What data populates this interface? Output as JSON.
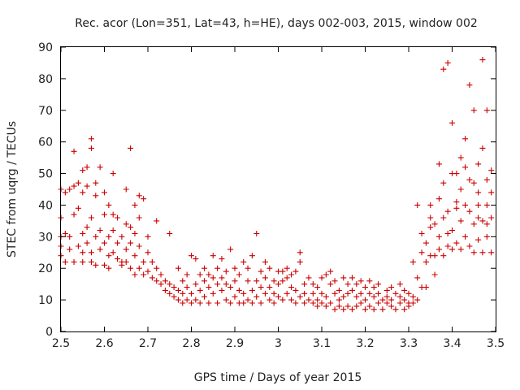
{
  "chart_data": {
    "type": "scatter",
    "title": "Rec. acor (Lon=351, Lat=43, h=HE), days 002-003, 2015, window 002",
    "xlabel": "GPS time / Days of year 2015",
    "ylabel": "STEC from uqrg / TECUs",
    "xlim": [
      2.5,
      3.5
    ],
    "ylim": [
      0,
      90
    ],
    "xticks": [
      "2.5",
      "2.6",
      "2.7",
      "2.8",
      "2.9",
      "3",
      "3.1",
      "3.2",
      "3.3",
      "3.4",
      "3.5"
    ],
    "yticks": [
      "0",
      "10",
      "20",
      "30",
      "40",
      "50",
      "60",
      "70",
      "80",
      "90"
    ],
    "grid": false,
    "legend": "none",
    "marker": "plus",
    "color": "#cc0000",
    "series": [
      {
        "name": "STEC",
        "points": [
          [
            2.5,
            45
          ],
          [
            2.5,
            36
          ],
          [
            2.51,
            44
          ],
          [
            2.52,
            45
          ],
          [
            2.53,
            57
          ],
          [
            2.53,
            46
          ],
          [
            2.54,
            47
          ],
          [
            2.55,
            44
          ],
          [
            2.55,
            51
          ],
          [
            2.56,
            52
          ],
          [
            2.56,
            46
          ],
          [
            2.57,
            61
          ],
          [
            2.57,
            58
          ],
          [
            2.58,
            47
          ],
          [
            2.59,
            52
          ],
          [
            2.6,
            44
          ],
          [
            2.61,
            40
          ],
          [
            2.62,
            50
          ],
          [
            2.63,
            36
          ],
          [
            2.65,
            45
          ],
          [
            2.66,
            58
          ],
          [
            2.67,
            40
          ],
          [
            2.68,
            43
          ],
          [
            2.69,
            42
          ],
          [
            2.72,
            35
          ],
          [
            2.5,
            30
          ],
          [
            2.5,
            24
          ],
          [
            2.5,
            27
          ],
          [
            2.51,
            22
          ],
          [
            2.51,
            31
          ],
          [
            2.52,
            26
          ],
          [
            2.52,
            30
          ],
          [
            2.53,
            37
          ],
          [
            2.53,
            22
          ],
          [
            2.54,
            39
          ],
          [
            2.54,
            27
          ],
          [
            2.55,
            25
          ],
          [
            2.55,
            31
          ],
          [
            2.55,
            22
          ],
          [
            2.56,
            33
          ],
          [
            2.56,
            28
          ],
          [
            2.57,
            22
          ],
          [
            2.57,
            36
          ],
          [
            2.57,
            25
          ],
          [
            2.58,
            30
          ],
          [
            2.58,
            43
          ],
          [
            2.58,
            21
          ],
          [
            2.59,
            26
          ],
          [
            2.59,
            32
          ],
          [
            2.6,
            37
          ],
          [
            2.6,
            21
          ],
          [
            2.6,
            28
          ],
          [
            2.61,
            30
          ],
          [
            2.61,
            24
          ],
          [
            2.61,
            20
          ],
          [
            2.62,
            32
          ],
          [
            2.62,
            37
          ],
          [
            2.62,
            25
          ],
          [
            2.63,
            23
          ],
          [
            2.63,
            28
          ],
          [
            2.64,
            30
          ],
          [
            2.64,
            22
          ],
          [
            2.64,
            21
          ],
          [
            2.65,
            34
          ],
          [
            2.65,
            26
          ],
          [
            2.65,
            22
          ],
          [
            2.66,
            33
          ],
          [
            2.66,
            20
          ],
          [
            2.66,
            28
          ],
          [
            2.67,
            31
          ],
          [
            2.67,
            24
          ],
          [
            2.67,
            18
          ],
          [
            2.68,
            36
          ],
          [
            2.68,
            20
          ],
          [
            2.68,
            27
          ],
          [
            2.69,
            22
          ],
          [
            2.69,
            18
          ],
          [
            2.7,
            30
          ],
          [
            2.7,
            19
          ],
          [
            2.7,
            25
          ],
          [
            2.71,
            17
          ],
          [
            2.71,
            22
          ],
          [
            2.72,
            16
          ],
          [
            2.72,
            20
          ],
          [
            2.73,
            15
          ],
          [
            2.73,
            18
          ],
          [
            2.74,
            13
          ],
          [
            2.74,
            16
          ],
          [
            2.75,
            31
          ],
          [
            2.75,
            15
          ],
          [
            2.75,
            12
          ],
          [
            2.76,
            14
          ],
          [
            2.76,
            11
          ],
          [
            2.77,
            20
          ],
          [
            2.77,
            13
          ],
          [
            2.77,
            10
          ],
          [
            2.78,
            16
          ],
          [
            2.78,
            12
          ],
          [
            2.78,
            9
          ],
          [
            2.79,
            14
          ],
          [
            2.79,
            10
          ],
          [
            2.79,
            18
          ],
          [
            2.8,
            24
          ],
          [
            2.8,
            12
          ],
          [
            2.8,
            9
          ],
          [
            2.81,
            15
          ],
          [
            2.81,
            23
          ],
          [
            2.81,
            10
          ],
          [
            2.82,
            13
          ],
          [
            2.82,
            18
          ],
          [
            2.82,
            9
          ],
          [
            2.83,
            16
          ],
          [
            2.83,
            11
          ],
          [
            2.83,
            20
          ],
          [
            2.84,
            14
          ],
          [
            2.84,
            9
          ],
          [
            2.84,
            18
          ],
          [
            2.85,
            17
          ],
          [
            2.85,
            12
          ],
          [
            2.85,
            24
          ],
          [
            2.86,
            15
          ],
          [
            2.86,
            9
          ],
          [
            2.86,
            20
          ],
          [
            2.87,
            13
          ],
          [
            2.87,
            17
          ],
          [
            2.87,
            23
          ],
          [
            2.88,
            15
          ],
          [
            2.88,
            10
          ],
          [
            2.88,
            19
          ],
          [
            2.89,
            26
          ],
          [
            2.89,
            14
          ],
          [
            2.89,
            9
          ],
          [
            2.9,
            20
          ],
          [
            2.9,
            11
          ],
          [
            2.9,
            16
          ],
          [
            2.91,
            13
          ],
          [
            2.91,
            9
          ],
          [
            2.91,
            18
          ],
          [
            2.92,
            12
          ],
          [
            2.92,
            22
          ],
          [
            2.92,
            9
          ],
          [
            2.93,
            16
          ],
          [
            2.93,
            10
          ],
          [
            2.93,
            20
          ],
          [
            2.94,
            13
          ],
          [
            2.94,
            24
          ],
          [
            2.94,
            9
          ],
          [
            2.95,
            31
          ],
          [
            2.95,
            16
          ],
          [
            2.95,
            11
          ],
          [
            2.96,
            19
          ],
          [
            2.96,
            9
          ],
          [
            2.96,
            14
          ],
          [
            2.97,
            22
          ],
          [
            2.97,
            12
          ],
          [
            2.97,
            17
          ],
          [
            2.98,
            20
          ],
          [
            2.98,
            10
          ],
          [
            2.98,
            14
          ],
          [
            2.99,
            12
          ],
          [
            2.99,
            16
          ],
          [
            2.99,
            9
          ],
          [
            3.0,
            19
          ],
          [
            3.0,
            11
          ],
          [
            3.0,
            15
          ],
          [
            3.01,
            19
          ],
          [
            3.01,
            10
          ],
          [
            3.01,
            16
          ],
          [
            3.02,
            20
          ],
          [
            3.02,
            12
          ],
          [
            3.02,
            17
          ],
          [
            3.03,
            18
          ],
          [
            3.03,
            10
          ],
          [
            3.03,
            14
          ],
          [
            3.04,
            13
          ],
          [
            3.04,
            9
          ],
          [
            3.04,
            19
          ],
          [
            3.05,
            25
          ],
          [
            3.05,
            11
          ],
          [
            3.05,
            22
          ],
          [
            3.06,
            12
          ],
          [
            3.06,
            9
          ],
          [
            3.06,
            15
          ],
          [
            3.07,
            17
          ],
          [
            3.07,
            10
          ],
          [
            3.08,
            12
          ],
          [
            3.08,
            9
          ],
          [
            3.08,
            15
          ],
          [
            3.09,
            10
          ],
          [
            3.09,
            8
          ],
          [
            3.09,
            14
          ],
          [
            3.1,
            17
          ],
          [
            3.1,
            9
          ],
          [
            3.1,
            12
          ],
          [
            3.11,
            18
          ],
          [
            3.11,
            8
          ],
          [
            3.11,
            11
          ],
          [
            3.12,
            15
          ],
          [
            3.12,
            9
          ],
          [
            3.12,
            19
          ],
          [
            3.13,
            12
          ],
          [
            3.13,
            7
          ],
          [
            3.13,
            16
          ],
          [
            3.14,
            10
          ],
          [
            3.14,
            8
          ],
          [
            3.14,
            13
          ],
          [
            3.15,
            17
          ],
          [
            3.15,
            7
          ],
          [
            3.15,
            11
          ],
          [
            3.16,
            15
          ],
          [
            3.16,
            8
          ],
          [
            3.16,
            12
          ],
          [
            3.17,
            13
          ],
          [
            3.17,
            7
          ],
          [
            3.17,
            17
          ],
          [
            3.18,
            11
          ],
          [
            3.18,
            8
          ],
          [
            3.18,
            15
          ],
          [
            3.19,
            16
          ],
          [
            3.19,
            9
          ],
          [
            3.19,
            12
          ],
          [
            3.2,
            14
          ],
          [
            3.2,
            7
          ],
          [
            3.2,
            10
          ],
          [
            3.21,
            12
          ],
          [
            3.21,
            8
          ],
          [
            3.21,
            16
          ],
          [
            3.22,
            11
          ],
          [
            3.22,
            7
          ],
          [
            3.22,
            14
          ],
          [
            3.23,
            15
          ],
          [
            3.23,
            9
          ],
          [
            3.23,
            12
          ],
          [
            3.24,
            10
          ],
          [
            3.24,
            7
          ],
          [
            3.25,
            13
          ],
          [
            3.25,
            9
          ],
          [
            3.25,
            11
          ],
          [
            3.26,
            14
          ],
          [
            3.26,
            8
          ],
          [
            3.26,
            10
          ],
          [
            3.27,
            12
          ],
          [
            3.27,
            7
          ],
          [
            3.28,
            15
          ],
          [
            3.28,
            9
          ],
          [
            3.28,
            11
          ],
          [
            3.29,
            10
          ],
          [
            3.29,
            7
          ],
          [
            3.29,
            13
          ],
          [
            3.3,
            12
          ],
          [
            3.3,
            8
          ],
          [
            3.3,
            9
          ],
          [
            3.31,
            22
          ],
          [
            3.31,
            11
          ],
          [
            3.31,
            9
          ],
          [
            3.32,
            17
          ],
          [
            3.32,
            40
          ],
          [
            3.32,
            10
          ],
          [
            3.33,
            25
          ],
          [
            3.33,
            14
          ],
          [
            3.33,
            31
          ],
          [
            3.34,
            22
          ],
          [
            3.34,
            28
          ],
          [
            3.34,
            14
          ],
          [
            3.35,
            36
          ],
          [
            3.35,
            24
          ],
          [
            3.35,
            33
          ],
          [
            3.36,
            18
          ],
          [
            3.36,
            34
          ],
          [
            3.36,
            24
          ],
          [
            3.37,
            26
          ],
          [
            3.37,
            42
          ],
          [
            3.37,
            30
          ],
          [
            3.38,
            83
          ],
          [
            3.38,
            36
          ],
          [
            3.38,
            24
          ],
          [
            3.39,
            85
          ],
          [
            3.39,
            31
          ],
          [
            3.39,
            27
          ],
          [
            3.4,
            66
          ],
          [
            3.4,
            32
          ],
          [
            3.4,
            26
          ],
          [
            3.41,
            50
          ],
          [
            3.41,
            39
          ],
          [
            3.41,
            28
          ],
          [
            3.42,
            55
          ],
          [
            3.42,
            35
          ],
          [
            3.42,
            26
          ],
          [
            3.43,
            61
          ],
          [
            3.43,
            40
          ],
          [
            3.43,
            30
          ],
          [
            3.44,
            78
          ],
          [
            3.44,
            48
          ],
          [
            3.44,
            27
          ],
          [
            3.45,
            70
          ],
          [
            3.45,
            34
          ],
          [
            3.45,
            25
          ],
          [
            3.46,
            53
          ],
          [
            3.46,
            44
          ],
          [
            3.46,
            29
          ],
          [
            3.47,
            86
          ],
          [
            3.47,
            58
          ],
          [
            3.47,
            25
          ],
          [
            3.48,
            70
          ],
          [
            3.48,
            40
          ],
          [
            3.48,
            30
          ],
          [
            3.49,
            51
          ],
          [
            3.49,
            36
          ],
          [
            3.49,
            25
          ],
          [
            3.35,
            40
          ],
          [
            3.38,
            47
          ],
          [
            3.4,
            50
          ],
          [
            3.42,
            45
          ],
          [
            3.43,
            52
          ],
          [
            3.45,
            47
          ],
          [
            3.46,
            40
          ],
          [
            3.47,
            35
          ],
          [
            3.48,
            48
          ],
          [
            3.49,
            44
          ],
          [
            3.37,
            53
          ],
          [
            3.39,
            38
          ],
          [
            3.41,
            41
          ],
          [
            3.44,
            38
          ],
          [
            3.46,
            36
          ],
          [
            3.48,
            34
          ]
        ]
      }
    ]
  }
}
